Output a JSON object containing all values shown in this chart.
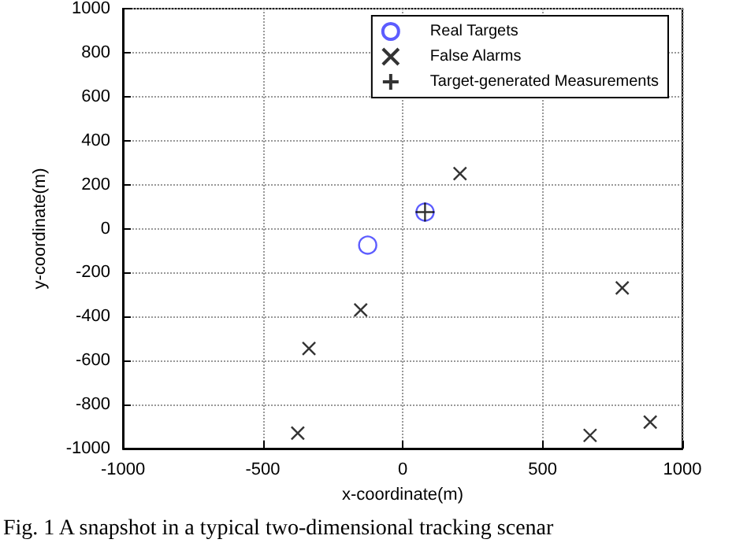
{
  "chart_data": {
    "type": "scatter",
    "xlabel": "x-coordinate(m)",
    "ylabel": "y-coordinate(m)",
    "annotations": [
      "Fig. 1 A snapshot in a typical two-dimensional tracking scenar"
    ],
    "series": [
      {
        "name": "Real Targets",
        "color": "#3333ff",
        "marker": "circle",
        "x": [
          -125,
          80
        ],
        "values": [
          -75,
          75
        ]
      },
      {
        "name": "False Alarms",
        "color": "#000000",
        "marker": "x",
        "x": [
          205,
          -150,
          -335,
          -375,
          785,
          670,
          885
        ],
        "values": [
          250,
          -370,
          -545,
          -930,
          -270,
          -940,
          -880
        ]
      },
      {
        "name": "Target-generated Measurements",
        "color": "#000000",
        "marker": "cross",
        "x": [
          80
        ],
        "values": [
          75
        ]
      }
    ],
    "xlim": [
      -1000,
      1000
    ],
    "xticks": [
      -1000,
      -500,
      0,
      500,
      1000
    ],
    "ylim": [
      -1000,
      1000
    ],
    "yticks": [
      -1000,
      -800,
      -600,
      -400,
      -200,
      0,
      200,
      400,
      600,
      800,
      1000
    ],
    "grid": true,
    "legend": "top right"
  }
}
